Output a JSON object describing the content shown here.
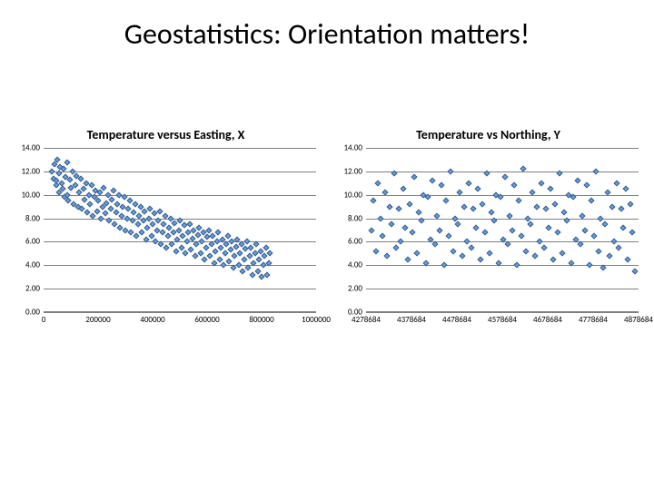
{
  "title": "Geostatistics: Orientation matters!",
  "chart_left": {
    "type": "scatter",
    "title": "Temperature versus Easting, X",
    "title_fontsize": 14,
    "xlim": [
      0,
      1000000
    ],
    "ylim": [
      0,
      14
    ],
    "xticks": [
      0,
      200000,
      400000,
      600000,
      800000,
      1000000
    ],
    "yticks": [
      0,
      2,
      4,
      6,
      8,
      10,
      12,
      14
    ],
    "ytick_labels": [
      "0.00",
      "2.00",
      "4.00",
      "6.00",
      "8.00",
      "10.00",
      "12.00",
      "14.00"
    ],
    "xtick_labels": [
      "0",
      "200000",
      "400000",
      "600000",
      "800000",
      "1000000"
    ],
    "grid": true,
    "grid_color": "#808080",
    "background_color": "#ffffff",
    "marker": {
      "shape": "diamond",
      "size": 5,
      "fill": "#6a9edc",
      "border": "#385d8a"
    },
    "points": [
      [
        30000,
        12.0
      ],
      [
        35000,
        11.4
      ],
      [
        40000,
        12.6
      ],
      [
        45000,
        10.8
      ],
      [
        48000,
        11.2
      ],
      [
        50000,
        13.0
      ],
      [
        55000,
        11.8
      ],
      [
        58000,
        10.2
      ],
      [
        60000,
        12.4
      ],
      [
        65000,
        11.0
      ],
      [
        70000,
        10.5
      ],
      [
        72000,
        12.2
      ],
      [
        75000,
        9.8
      ],
      [
        80000,
        11.5
      ],
      [
        85000,
        10.0
      ],
      [
        88000,
        12.8
      ],
      [
        90000,
        9.5
      ],
      [
        95000,
        11.3
      ],
      [
        100000,
        10.6
      ],
      [
        105000,
        12.0
      ],
      [
        110000,
        9.2
      ],
      [
        115000,
        10.8
      ],
      [
        120000,
        11.6
      ],
      [
        125000,
        9.0
      ],
      [
        130000,
        10.2
      ],
      [
        135000,
        11.4
      ],
      [
        140000,
        8.8
      ],
      [
        145000,
        10.5
      ],
      [
        150000,
        9.6
      ],
      [
        155000,
        11.0
      ],
      [
        160000,
        8.5
      ],
      [
        165000,
        10.0
      ],
      [
        170000,
        9.2
      ],
      [
        175000,
        10.8
      ],
      [
        180000,
        8.2
      ],
      [
        185000,
        9.8
      ],
      [
        190000,
        10.4
      ],
      [
        195000,
        8.6
      ],
      [
        200000,
        9.5
      ],
      [
        205000,
        10.2
      ],
      [
        210000,
        8.0
      ],
      [
        215000,
        9.0
      ],
      [
        220000,
        10.6
      ],
      [
        225000,
        8.4
      ],
      [
        230000,
        9.3
      ],
      [
        235000,
        10.0
      ],
      [
        240000,
        7.8
      ],
      [
        245000,
        8.8
      ],
      [
        250000,
        9.6
      ],
      [
        255000,
        10.4
      ],
      [
        260000,
        7.5
      ],
      [
        265000,
        8.5
      ],
      [
        270000,
        9.2
      ],
      [
        275000,
        10.0
      ],
      [
        280000,
        7.2
      ],
      [
        285000,
        8.2
      ],
      [
        290000,
        9.0
      ],
      [
        295000,
        9.8
      ],
      [
        300000,
        7.0
      ],
      [
        305000,
        8.0
      ],
      [
        310000,
        8.8
      ],
      [
        315000,
        9.5
      ],
      [
        320000,
        6.8
      ],
      [
        325000,
        7.8
      ],
      [
        330000,
        8.5
      ],
      [
        335000,
        9.2
      ],
      [
        340000,
        6.5
      ],
      [
        345000,
        7.5
      ],
      [
        350000,
        8.2
      ],
      [
        355000,
        9.0
      ],
      [
        360000,
        6.8
      ],
      [
        365000,
        7.8
      ],
      [
        370000,
        8.6
      ],
      [
        375000,
        6.2
      ],
      [
        380000,
        7.2
      ],
      [
        385000,
        8.0
      ],
      [
        390000,
        8.8
      ],
      [
        395000,
        6.5
      ],
      [
        400000,
        7.5
      ],
      [
        405000,
        8.4
      ],
      [
        410000,
        6.0
      ],
      [
        415000,
        7.0
      ],
      [
        420000,
        7.8
      ],
      [
        425000,
        8.6
      ],
      [
        430000,
        5.8
      ],
      [
        435000,
        6.8
      ],
      [
        440000,
        7.5
      ],
      [
        445000,
        8.2
      ],
      [
        450000,
        5.5
      ],
      [
        455000,
        6.5
      ],
      [
        460000,
        7.2
      ],
      [
        465000,
        8.0
      ],
      [
        470000,
        5.8
      ],
      [
        475000,
        6.8
      ],
      [
        480000,
        7.6
      ],
      [
        485000,
        5.2
      ],
      [
        490000,
        6.2
      ],
      [
        495000,
        7.0
      ],
      [
        500000,
        7.8
      ],
      [
        505000,
        5.5
      ],
      [
        510000,
        6.5
      ],
      [
        515000,
        7.4
      ],
      [
        520000,
        5.0
      ],
      [
        525000,
        6.0
      ],
      [
        530000,
        6.8
      ],
      [
        535000,
        7.5
      ],
      [
        540000,
        5.3
      ],
      [
        545000,
        6.3
      ],
      [
        550000,
        7.0
      ],
      [
        555000,
        4.8
      ],
      [
        560000,
        5.8
      ],
      [
        565000,
        6.6
      ],
      [
        570000,
        7.2
      ],
      [
        575000,
        5.0
      ],
      [
        580000,
        6.0
      ],
      [
        585000,
        6.8
      ],
      [
        590000,
        4.5
      ],
      [
        595000,
        5.5
      ],
      [
        600000,
        6.4
      ],
      [
        605000,
        7.0
      ],
      [
        610000,
        4.8
      ],
      [
        615000,
        5.8
      ],
      [
        620000,
        6.5
      ],
      [
        625000,
        4.2
      ],
      [
        630000,
        5.2
      ],
      [
        635000,
        6.0
      ],
      [
        640000,
        6.8
      ],
      [
        645000,
        4.5
      ],
      [
        650000,
        5.5
      ],
      [
        655000,
        6.2
      ],
      [
        660000,
        4.0
      ],
      [
        665000,
        5.0
      ],
      [
        670000,
        5.8
      ],
      [
        675000,
        6.5
      ],
      [
        680000,
        4.3
      ],
      [
        685000,
        5.3
      ],
      [
        690000,
        6.0
      ],
      [
        695000,
        3.8
      ],
      [
        700000,
        4.8
      ],
      [
        705000,
        5.6
      ],
      [
        710000,
        6.2
      ],
      [
        715000,
        4.0
      ],
      [
        720000,
        5.0
      ],
      [
        725000,
        5.8
      ],
      [
        730000,
        3.5
      ],
      [
        735000,
        4.5
      ],
      [
        740000,
        5.4
      ],
      [
        745000,
        6.0
      ],
      [
        750000,
        3.8
      ],
      [
        755000,
        4.8
      ],
      [
        760000,
        5.5
      ],
      [
        765000,
        3.2
      ],
      [
        770000,
        4.2
      ],
      [
        775000,
        5.0
      ],
      [
        780000,
        5.8
      ],
      [
        785000,
        3.5
      ],
      [
        790000,
        4.5
      ],
      [
        795000,
        5.2
      ],
      [
        800000,
        3.0
      ],
      [
        805000,
        4.0
      ],
      [
        810000,
        4.8
      ],
      [
        815000,
        5.5
      ],
      [
        820000,
        3.2
      ],
      [
        825000,
        4.2
      ],
      [
        830000,
        5.0
      ]
    ]
  },
  "chart_right": {
    "type": "scatter",
    "title": "Temperature vs Northing, Y",
    "title_fontsize": 14,
    "xlim": [
      4278684,
      4878684
    ],
    "ylim": [
      0,
      14
    ],
    "xticks": [
      4278684,
      4378684,
      4478684,
      4578684,
      4678684,
      4778684,
      4878684
    ],
    "yticks": [
      0,
      2,
      4,
      6,
      8,
      10,
      12,
      14
    ],
    "ytick_labels": [
      "0.00",
      "2.00",
      "4.00",
      "6.00",
      "8.00",
      "10.00",
      "12.00",
      "14.00"
    ],
    "xtick_labels": [
      "4278684",
      "4378684",
      "4478684",
      "4578684",
      "4678684",
      "4778684",
      "4878684"
    ],
    "grid": true,
    "grid_color": "#808080",
    "background_color": "#ffffff",
    "marker": {
      "shape": "diamond",
      "size": 5,
      "fill": "#6a9edc",
      "border": "#385d8a"
    },
    "points": [
      [
        4290000,
        7.0
      ],
      [
        4295000,
        9.5
      ],
      [
        4300000,
        5.2
      ],
      [
        4305000,
        11.0
      ],
      [
        4310000,
        8.0
      ],
      [
        4315000,
        6.5
      ],
      [
        4320000,
        10.2
      ],
      [
        4325000,
        4.8
      ],
      [
        4330000,
        9.0
      ],
      [
        4335000,
        7.5
      ],
      [
        4340000,
        11.8
      ],
      [
        4345000,
        5.5
      ],
      [
        4350000,
        8.8
      ],
      [
        4355000,
        6.0
      ],
      [
        4360000,
        10.5
      ],
      [
        4365000,
        7.2
      ],
      [
        4370000,
        4.5
      ],
      [
        4375000,
        9.2
      ],
      [
        4380000,
        6.8
      ],
      [
        4385000,
        11.5
      ],
      [
        4390000,
        5.0
      ],
      [
        4395000,
        8.5
      ],
      [
        4400000,
        7.8
      ],
      [
        4405000,
        10.0
      ],
      [
        4410000,
        4.2
      ],
      [
        4415000,
        9.8
      ],
      [
        4420000,
        6.2
      ],
      [
        4425000,
        11.2
      ],
      [
        4430000,
        5.8
      ],
      [
        4435000,
        8.2
      ],
      [
        4440000,
        7.0
      ],
      [
        4445000,
        10.8
      ],
      [
        4450000,
        4.0
      ],
      [
        4455000,
        9.5
      ],
      [
        4460000,
        6.5
      ],
      [
        4465000,
        12.0
      ],
      [
        4470000,
        5.2
      ],
      [
        4475000,
        8.0
      ],
      [
        4480000,
        7.5
      ],
      [
        4485000,
        10.2
      ],
      [
        4490000,
        4.8
      ],
      [
        4495000,
        9.0
      ],
      [
        4500000,
        6.0
      ],
      [
        4505000,
        11.0
      ],
      [
        4510000,
        5.5
      ],
      [
        4515000,
        8.8
      ],
      [
        4520000,
        7.2
      ],
      [
        4525000,
        10.5
      ],
      [
        4530000,
        4.5
      ],
      [
        4535000,
        9.2
      ],
      [
        4540000,
        6.8
      ],
      [
        4545000,
        11.8
      ],
      [
        4550000,
        5.0
      ],
      [
        4555000,
        8.5
      ],
      [
        4560000,
        7.8
      ],
      [
        4565000,
        10.0
      ],
      [
        4570000,
        4.2
      ],
      [
        4575000,
        9.8
      ],
      [
        4580000,
        6.2
      ],
      [
        4585000,
        11.5
      ],
      [
        4590000,
        5.8
      ],
      [
        4595000,
        8.2
      ],
      [
        4600000,
        7.0
      ],
      [
        4605000,
        10.8
      ],
      [
        4610000,
        4.0
      ],
      [
        4615000,
        9.5
      ],
      [
        4620000,
        6.5
      ],
      [
        4625000,
        12.2
      ],
      [
        4630000,
        5.2
      ],
      [
        4635000,
        8.0
      ],
      [
        4640000,
        7.5
      ],
      [
        4645000,
        10.2
      ],
      [
        4650000,
        4.8
      ],
      [
        4655000,
        9.0
      ],
      [
        4660000,
        6.0
      ],
      [
        4665000,
        11.0
      ],
      [
        4670000,
        5.5
      ],
      [
        4675000,
        8.8
      ],
      [
        4680000,
        7.2
      ],
      [
        4685000,
        10.5
      ],
      [
        4690000,
        4.5
      ],
      [
        4695000,
        9.2
      ],
      [
        4700000,
        6.8
      ],
      [
        4705000,
        11.8
      ],
      [
        4710000,
        5.0
      ],
      [
        4715000,
        8.5
      ],
      [
        4720000,
        7.8
      ],
      [
        4725000,
        10.0
      ],
      [
        4730000,
        4.2
      ],
      [
        4735000,
        9.8
      ],
      [
        4740000,
        6.2
      ],
      [
        4745000,
        11.2
      ],
      [
        4750000,
        5.8
      ],
      [
        4755000,
        8.2
      ],
      [
        4760000,
        7.0
      ],
      [
        4765000,
        10.8
      ],
      [
        4770000,
        4.0
      ],
      [
        4775000,
        9.5
      ],
      [
        4780000,
        6.5
      ],
      [
        4785000,
        12.0
      ],
      [
        4790000,
        5.2
      ],
      [
        4795000,
        8.0
      ],
      [
        4800000,
        3.8
      ],
      [
        4805000,
        7.5
      ],
      [
        4810000,
        10.2
      ],
      [
        4815000,
        4.8
      ],
      [
        4820000,
        9.0
      ],
      [
        4825000,
        6.0
      ],
      [
        4830000,
        11.0
      ],
      [
        4835000,
        5.5
      ],
      [
        4840000,
        8.8
      ],
      [
        4845000,
        7.2
      ],
      [
        4850000,
        10.5
      ],
      [
        4855000,
        4.5
      ],
      [
        4860000,
        9.2
      ],
      [
        4865000,
        6.8
      ],
      [
        4870000,
        3.5
      ]
    ]
  }
}
